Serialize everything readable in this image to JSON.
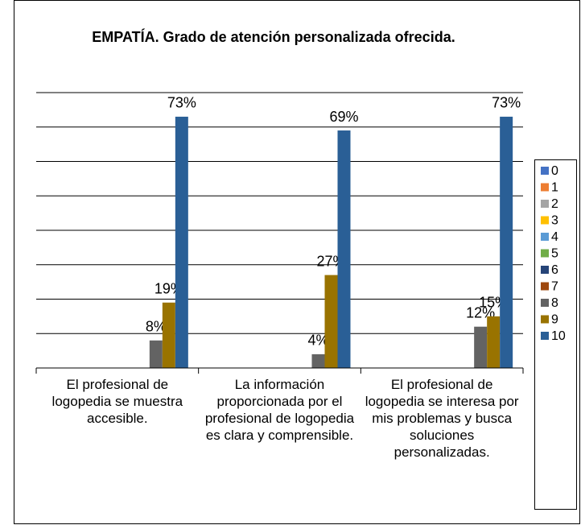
{
  "chart_data": {
    "type": "bar",
    "title": "EMPATÍA. Grado de atención personalizada ofrecida.",
    "categories": [
      "El profesional de logopedia se muestra accesible.",
      "La información proporcionada por el profesional de logopedia es clara y comprensible.",
      "El profesional de logopedia se interesa por mis problemas y busca soluciones personalizadas."
    ],
    "series": [
      {
        "name": "0",
        "color": "#4472c4",
        "values": [
          null,
          null,
          null
        ]
      },
      {
        "name": "1",
        "color": "#ed7d31",
        "values": [
          null,
          null,
          null
        ]
      },
      {
        "name": "2",
        "color": "#a5a5a5",
        "values": [
          null,
          null,
          null
        ]
      },
      {
        "name": "3",
        "color": "#ffc000",
        "values": [
          null,
          null,
          null
        ]
      },
      {
        "name": "4",
        "color": "#5b9bd5",
        "values": [
          null,
          null,
          null
        ]
      },
      {
        "name": "5",
        "color": "#70ad47",
        "values": [
          null,
          null,
          null
        ]
      },
      {
        "name": "6",
        "color": "#264478",
        "values": [
          null,
          null,
          null
        ]
      },
      {
        "name": "7",
        "color": "#9e480e",
        "values": [
          null,
          null,
          null
        ]
      },
      {
        "name": "8",
        "color": "#636363",
        "values": [
          8,
          4,
          12
        ],
        "value_labels": [
          "8%",
          "4%",
          "12%"
        ]
      },
      {
        "name": "9",
        "color": "#997300",
        "values": [
          19,
          27,
          15
        ],
        "value_labels": [
          "19%",
          "27%",
          "15%"
        ]
      },
      {
        "name": "10",
        "color": "#2a5f96",
        "values": [
          73,
          69,
          73
        ],
        "value_labels": [
          "73%",
          "69%",
          "73%"
        ]
      }
    ],
    "ylim": [
      0,
      80
    ],
    "yticks": [
      0,
      10,
      20,
      30,
      40,
      50,
      60,
      70,
      80
    ],
    "grid": true,
    "legend": "right"
  }
}
